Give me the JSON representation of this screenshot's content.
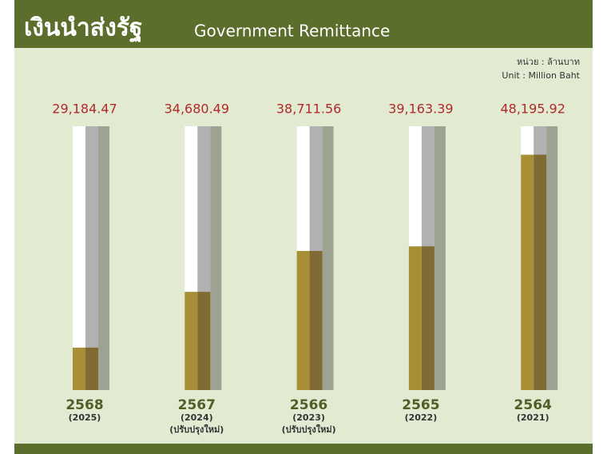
{
  "chart_data": {
    "type": "bar",
    "title": "เงินนำส่งรัฐ",
    "subtitle": "Government Remittance",
    "unit_th": "หน่วย : ล้านบาท",
    "unit_en": "Unit : Million Baht",
    "categories": [
      "2568",
      "2567",
      "2566",
      "2565",
      "2564"
    ],
    "category_years": [
      "(2025)",
      "(2024)",
      "(2023)",
      "(2022)",
      "(2021)"
    ],
    "category_notes": [
      null,
      "(ปรับปรุงใหม่)",
      "(ปรับปรุงใหม่)",
      null,
      null
    ],
    "values": [
      29184.47,
      34680.49,
      38711.56,
      39163.39,
      48195.92
    ],
    "value_labels": [
      "29,184.47",
      "34,680.49",
      "38,711.56",
      "39,163.39",
      "48,195.92"
    ],
    "color": "#a88f35",
    "ylim": [
      25000,
      51000
    ]
  }
}
